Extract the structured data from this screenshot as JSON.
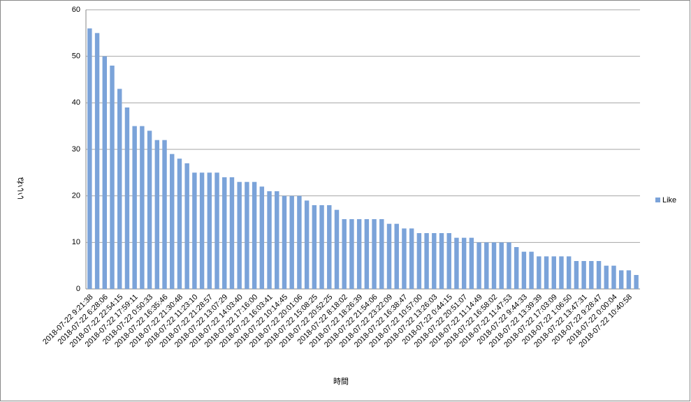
{
  "chart_data": {
    "type": "bar",
    "x_label": "時間",
    "y_label": "いいね",
    "series": [
      {
        "name": "Like",
        "color": "#7ba3d9",
        "values": [
          56,
          55,
          50,
          48,
          43,
          39,
          35,
          35,
          34,
          32,
          32,
          29,
          28,
          27,
          25,
          25,
          25,
          25,
          24,
          24,
          23,
          23,
          23,
          22,
          21,
          21,
          20,
          20,
          20,
          19,
          18,
          18,
          18,
          17,
          15,
          15,
          15,
          15,
          15,
          15,
          14,
          14,
          13,
          13,
          12,
          12,
          12,
          12,
          12,
          11,
          11,
          11,
          10,
          10,
          10,
          10,
          10,
          9,
          8,
          8,
          7,
          7,
          7,
          7,
          7,
          6,
          6,
          6,
          6,
          5,
          5,
          4,
          4,
          3
        ]
      }
    ],
    "categories": [
      "2018-07-22 9:21:38",
      null,
      "2018-07-22 6:28:06",
      null,
      "2018-07-22 22:54:15",
      null,
      "2018-07-22 17:59:11",
      null,
      "2018-07-22 0:50:33",
      null,
      "2018-07-22 16:35:46",
      null,
      "2018-07-22 21:30:48",
      null,
      "2018-07-22 11:23:10",
      null,
      "2018-07-22 21:28:57",
      null,
      "2018-07-22 13:07:29",
      null,
      "2018-07-22 14:03:40",
      null,
      "2018-07-22 17:16:00",
      null,
      "2018-07-22 16:03:41",
      null,
      "2018-07-22 10:14:45",
      null,
      "2018-07-22 20:01:06",
      null,
      "2018-07-22 15:08:25",
      null,
      "2018-07-22 20:52:25",
      null,
      "2018-07-22 8:18:02",
      null,
      "2018-07-22 18:26:39",
      null,
      "2018-07-22 21:54:06",
      null,
      "2018-07-22 23:22:09",
      null,
      "2018-07-22 16:38:47",
      null,
      "2018-07-22 10:57:00",
      null,
      "2018-07-22 13:26:03",
      null,
      "2018-07-22 0:44:15",
      null,
      "2018-07-22 20:51:07",
      null,
      "2018-07-22 11:14:49",
      null,
      "2018-07-22 16:58:02",
      null,
      "2018-07-22 11:47:53",
      null,
      "2018-07-22 9:44:33",
      null,
      "2018-07-22 13:39:39",
      null,
      "2018-07-22 17:03:09",
      null,
      "2018-07-22 1:06:50",
      null,
      "2018-07-22 13:47:31",
      null,
      "2018-07-22 9:28:47",
      null,
      "2018-07-22 0:00:04",
      null,
      "2018-07-22 10:40:58",
      null
    ],
    "ylim": [
      0,
      60
    ],
    "yticks": [
      0,
      10,
      20,
      30,
      40,
      50,
      60
    ],
    "grid": true,
    "legend": "right"
  }
}
